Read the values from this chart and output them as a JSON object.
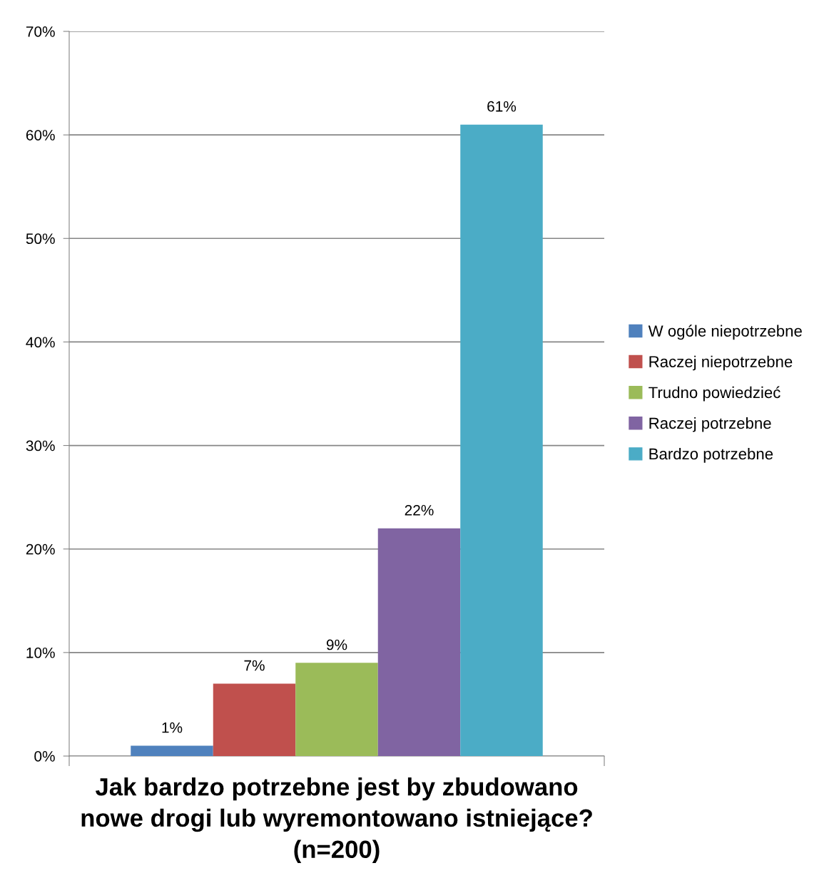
{
  "chart_data": {
    "type": "bar",
    "xlabel": "Jak bardzo potrzebne jest by zbudowano nowe drogi lub wyremontowano istniejące? (n=200)",
    "categories": [
      null
    ],
    "series": [
      {
        "name": "W ogóle niepotrzebne",
        "color": "#4f81bd",
        "values": [
          1
        ],
        "value_labels": [
          "1%"
        ]
      },
      {
        "name": "Raczej niepotrzebne",
        "color": "#c0504d",
        "values": [
          7
        ],
        "value_labels": [
          "7%"
        ]
      },
      {
        "name": "Trudno powiedzieć",
        "color": "#9bbb59",
        "values": [
          9
        ],
        "value_labels": [
          "9%"
        ]
      },
      {
        "name": "Raczej potrzebne",
        "color": "#8064a2",
        "values": [
          22
        ],
        "value_labels": [
          "22%"
        ]
      },
      {
        "name": "Bardzo potrzebne",
        "color": "#4bacc6",
        "values": [
          61
        ],
        "value_labels": [
          "61%"
        ]
      }
    ],
    "ylim": [
      0,
      70
    ],
    "yticks": [
      {
        "value": 0,
        "label": "0%"
      },
      {
        "value": 10,
        "label": "10%"
      },
      {
        "value": 20,
        "label": "20%"
      },
      {
        "value": 30,
        "label": "30%"
      },
      {
        "value": 40,
        "label": "40%"
      },
      {
        "value": 50,
        "label": "50%"
      },
      {
        "value": 60,
        "label": "60%"
      },
      {
        "value": 70,
        "label": "70%"
      }
    ],
    "grid": "y",
    "legend": "right"
  }
}
